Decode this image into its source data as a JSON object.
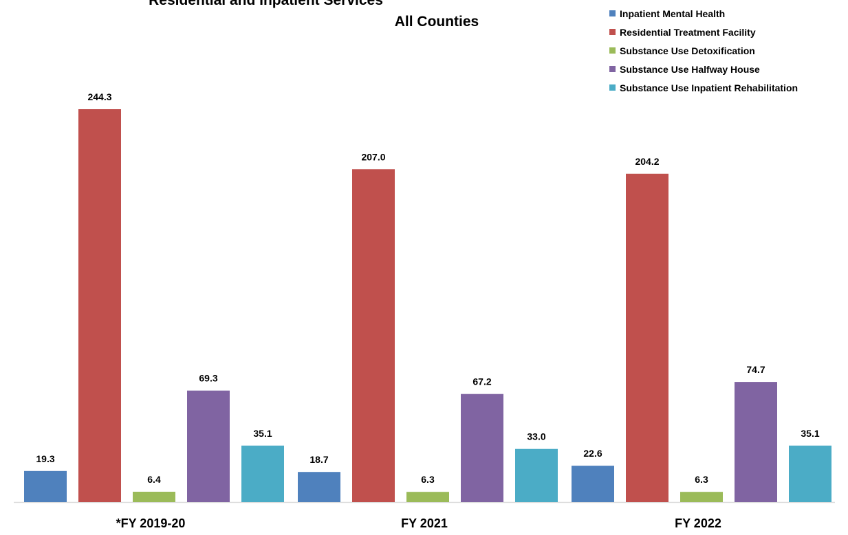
{
  "chart_data": {
    "type": "bar",
    "title": "Residential and Inpatient Services",
    "subtitle": "All Counties",
    "categories": [
      "*FY 2019-20",
      "FY 2021",
      "FY 2022"
    ],
    "series": [
      {
        "name": "Inpatient Mental Health",
        "color": "#4F81BD",
        "values": [
          19.3,
          18.7,
          22.6
        ]
      },
      {
        "name": "Residential Treatment Facility",
        "color": "#C0504D",
        "values": [
          244.3,
          207.0,
          204.2
        ]
      },
      {
        "name": "Substance Use Detoxification",
        "color": "#9BBB59",
        "values": [
          6.4,
          6.3,
          6.3
        ]
      },
      {
        "name": "Substance Use Halfway House",
        "color": "#8064A2",
        "values": [
          69.3,
          67.2,
          74.7
        ]
      },
      {
        "name": "Substance Use Inpatient Rehabilitation",
        "color": "#4BACC6",
        "values": [
          35.1,
          33.0,
          35.1
        ]
      }
    ],
    "value_format_decimals": 1,
    "xlabel": "",
    "ylabel": "",
    "ylim": [
      0,
      262
    ],
    "grid": false,
    "legend_position": "top-right"
  }
}
